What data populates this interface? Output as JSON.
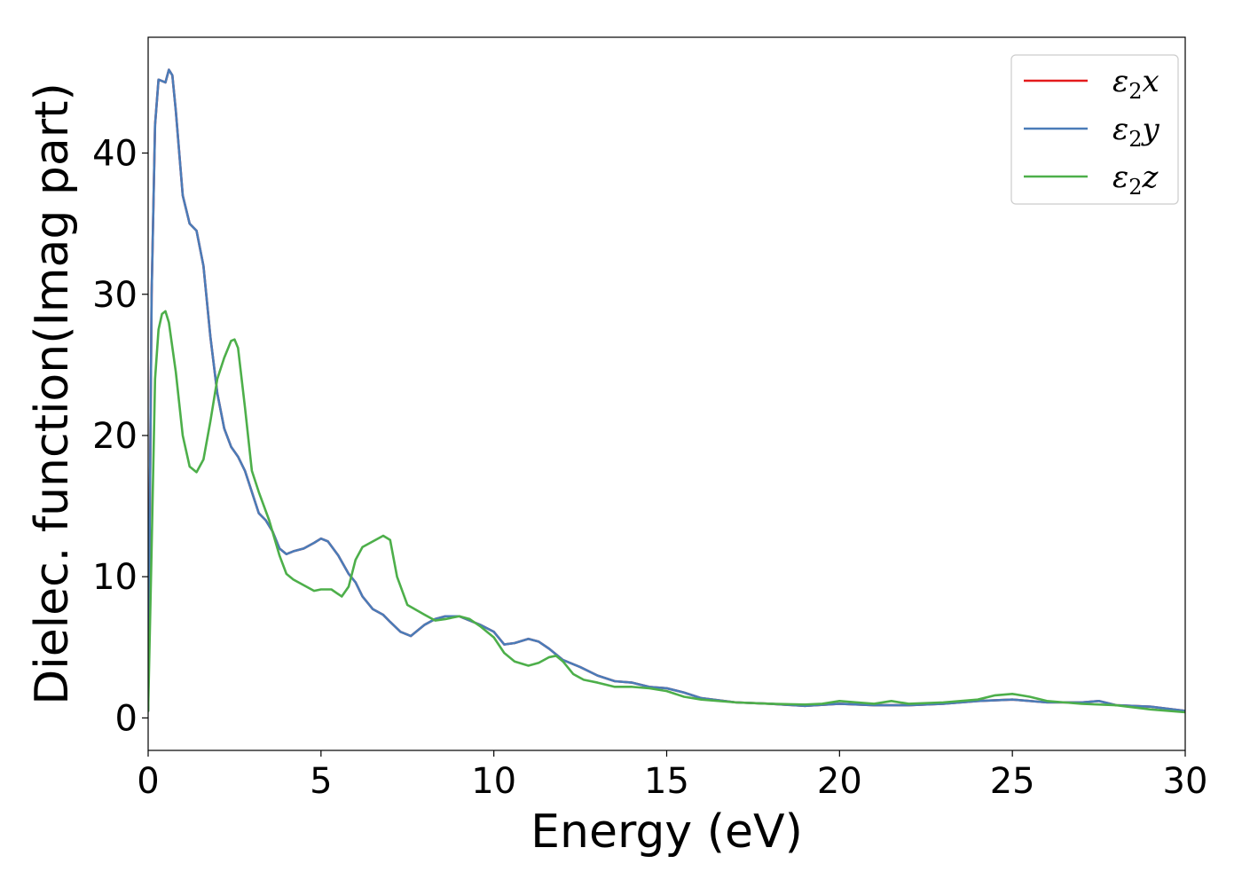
{
  "chart_data": {
    "type": "line",
    "xlabel": "Energy (eV)",
    "ylabel": "Dielec. function(Imag part)",
    "xlim": [
      0,
      30
    ],
    "ylim": [
      -2.3,
      48.2
    ],
    "xticks": [
      0,
      5,
      10,
      15,
      20,
      25,
      30
    ],
    "yticks": [
      0,
      10,
      20,
      30,
      40
    ],
    "grid": false,
    "legend_position": "top-right",
    "series": [
      {
        "name": "ε₂x",
        "legend": {
          "symbol": "ε",
          "sub": "2",
          "axis": "x"
        },
        "color": "#e41a1c",
        "x": [
          0,
          0.1,
          0.2,
          0.3,
          0.4,
          0.5,
          0.6,
          0.7,
          0.8,
          1.0,
          1.2,
          1.4,
          1.6,
          1.8,
          2.0,
          2.2,
          2.4,
          2.6,
          2.8,
          3.0,
          3.2,
          3.4,
          3.6,
          3.8,
          4.0,
          4.2,
          4.5,
          4.8,
          5.0,
          5.2,
          5.5,
          5.8,
          6.0,
          6.2,
          6.5,
          6.8,
          7.0,
          7.3,
          7.6,
          8.0,
          8.3,
          8.6,
          9.0,
          9.3,
          9.6,
          10.0,
          10.3,
          10.6,
          11.0,
          11.3,
          11.6,
          12.0,
          12.5,
          13.0,
          13.5,
          14.0,
          14.5,
          15.0,
          15.5,
          16.0,
          17.0,
          18.0,
          19.0,
          20.0,
          21.0,
          22.0,
          23.0,
          24.0,
          25.0,
          26.0,
          27.0,
          27.5,
          28.0,
          29.0,
          30.0
        ],
        "values": [
          0.5,
          30,
          42,
          45.2,
          45.1,
          45.0,
          45.9,
          45.5,
          43.0,
          37.0,
          35.0,
          34.5,
          32.0,
          27.0,
          23.0,
          20.5,
          19.2,
          18.5,
          17.5,
          16.0,
          14.5,
          14.0,
          13.2,
          12.0,
          11.6,
          11.8,
          12.0,
          12.4,
          12.7,
          12.5,
          11.5,
          10.2,
          9.6,
          8.6,
          7.7,
          7.3,
          6.8,
          6.1,
          5.8,
          6.6,
          7.0,
          7.2,
          7.2,
          6.9,
          6.6,
          6.1,
          5.2,
          5.3,
          5.6,
          5.4,
          4.9,
          4.1,
          3.6,
          3.0,
          2.6,
          2.5,
          2.2,
          2.1,
          1.8,
          1.4,
          1.1,
          1.0,
          0.85,
          1.0,
          0.9,
          0.9,
          1.0,
          1.2,
          1.3,
          1.1,
          1.1,
          1.2,
          0.9,
          0.8,
          0.5
        ]
      },
      {
        "name": "ε₂y",
        "legend": {
          "symbol": "ε",
          "sub": "2",
          "axis": "y"
        },
        "color": "#4a7cb8",
        "x": [
          0,
          0.1,
          0.2,
          0.3,
          0.4,
          0.5,
          0.6,
          0.7,
          0.8,
          1.0,
          1.2,
          1.4,
          1.6,
          1.8,
          2.0,
          2.2,
          2.4,
          2.6,
          2.8,
          3.0,
          3.2,
          3.4,
          3.6,
          3.8,
          4.0,
          4.2,
          4.5,
          4.8,
          5.0,
          5.2,
          5.5,
          5.8,
          6.0,
          6.2,
          6.5,
          6.8,
          7.0,
          7.3,
          7.6,
          8.0,
          8.3,
          8.6,
          9.0,
          9.3,
          9.6,
          10.0,
          10.3,
          10.6,
          11.0,
          11.3,
          11.6,
          12.0,
          12.5,
          13.0,
          13.5,
          14.0,
          14.5,
          15.0,
          15.5,
          16.0,
          17.0,
          18.0,
          19.0,
          20.0,
          21.0,
          22.0,
          23.0,
          24.0,
          25.0,
          26.0,
          27.0,
          27.5,
          28.0,
          29.0,
          30.0
        ],
        "values": [
          0.5,
          30,
          42,
          45.2,
          45.1,
          45.0,
          45.9,
          45.5,
          43.0,
          37.0,
          35.0,
          34.5,
          32.0,
          27.0,
          23.0,
          20.5,
          19.2,
          18.5,
          17.5,
          16.0,
          14.5,
          14.0,
          13.2,
          12.0,
          11.6,
          11.8,
          12.0,
          12.4,
          12.7,
          12.5,
          11.5,
          10.2,
          9.6,
          8.6,
          7.7,
          7.3,
          6.8,
          6.1,
          5.8,
          6.6,
          7.0,
          7.2,
          7.2,
          6.9,
          6.6,
          6.1,
          5.2,
          5.3,
          5.6,
          5.4,
          4.9,
          4.1,
          3.6,
          3.0,
          2.6,
          2.5,
          2.2,
          2.1,
          1.8,
          1.4,
          1.1,
          1.0,
          0.85,
          1.0,
          0.9,
          0.9,
          1.0,
          1.2,
          1.3,
          1.1,
          1.1,
          1.2,
          0.9,
          0.8,
          0.5
        ]
      },
      {
        "name": "ε₂z",
        "legend": {
          "symbol": "ε",
          "sub": "2",
          "axis": "z"
        },
        "color": "#4daf4a",
        "x": [
          0,
          0.1,
          0.2,
          0.3,
          0.4,
          0.5,
          0.6,
          0.8,
          1.0,
          1.2,
          1.4,
          1.6,
          1.8,
          2.0,
          2.2,
          2.4,
          2.5,
          2.6,
          2.8,
          3.0,
          3.2,
          3.5,
          3.8,
          4.0,
          4.2,
          4.5,
          4.8,
          5.0,
          5.3,
          5.6,
          5.8,
          6.0,
          6.2,
          6.5,
          6.8,
          7.0,
          7.2,
          7.5,
          8.0,
          8.3,
          8.6,
          9.0,
          9.3,
          9.6,
          10.0,
          10.3,
          10.6,
          11.0,
          11.3,
          11.6,
          11.8,
          12.0,
          12.3,
          12.6,
          13.0,
          13.5,
          14.0,
          14.5,
          15.0,
          15.5,
          16.0,
          17.0,
          18.0,
          19.0,
          19.5,
          20.0,
          20.5,
          21.0,
          21.5,
          22.0,
          23.0,
          24.0,
          24.5,
          25.0,
          25.5,
          26.0,
          26.5,
          27.0,
          28.0,
          29.0,
          30.0
        ],
        "values": [
          0.5,
          12,
          24,
          27.5,
          28.6,
          28.8,
          28.0,
          24.5,
          20.0,
          17.8,
          17.4,
          18.3,
          21.0,
          24.0,
          25.5,
          26.7,
          26.8,
          26.2,
          22.0,
          17.5,
          16.0,
          14.0,
          11.5,
          10.2,
          9.8,
          9.4,
          9.0,
          9.1,
          9.1,
          8.6,
          9.3,
          11.2,
          12.1,
          12.5,
          12.9,
          12.6,
          10.0,
          8.0,
          7.3,
          6.9,
          7.0,
          7.2,
          7.0,
          6.5,
          5.7,
          4.6,
          4.0,
          3.7,
          3.9,
          4.3,
          4.4,
          4.0,
          3.1,
          2.7,
          2.5,
          2.2,
          2.2,
          2.1,
          1.9,
          1.5,
          1.3,
          1.1,
          1.0,
          0.95,
          1.0,
          1.2,
          1.1,
          1.0,
          1.2,
          1.0,
          1.1,
          1.3,
          1.6,
          1.7,
          1.5,
          1.2,
          1.1,
          1.0,
          0.9,
          0.6,
          0.4
        ]
      }
    ]
  }
}
